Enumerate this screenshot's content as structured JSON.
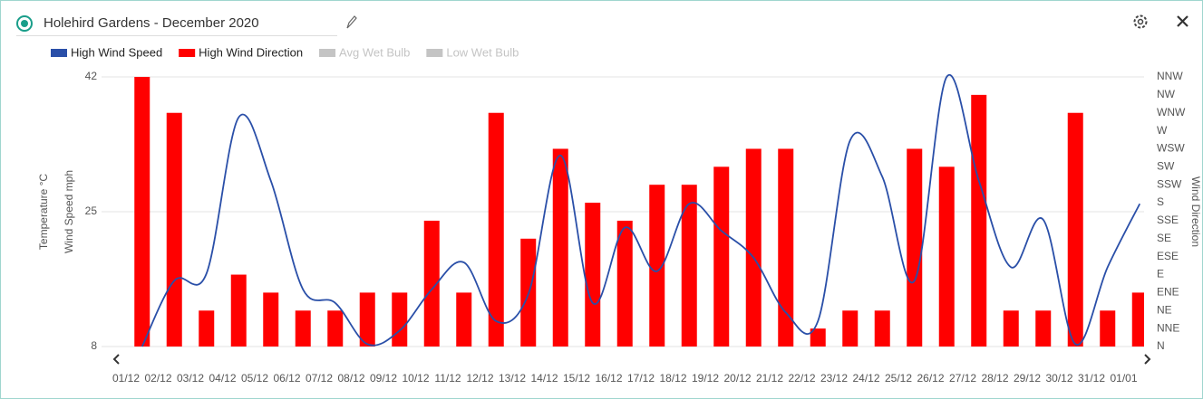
{
  "header": {
    "title": "Holehird Gardens - December 2020"
  },
  "chart_data": {
    "type": "combo",
    "categories": [
      "01/12",
      "02/12",
      "03/12",
      "04/12",
      "05/12",
      "06/12",
      "07/12",
      "08/12",
      "09/12",
      "10/12",
      "11/12",
      "12/12",
      "13/12",
      "14/12",
      "15/12",
      "16/12",
      "17/12",
      "18/12",
      "19/12",
      "20/12",
      "21/12",
      "22/12",
      "23/12",
      "24/12",
      "25/12",
      "26/12",
      "27/12",
      "28/12",
      "29/12",
      "30/12",
      "31/12",
      "01/01"
    ],
    "y_label": "Wind Speed mph",
    "y_label_secondary": "Temperature °C",
    "y2_label": "Wind Direction",
    "ylim": [
      8,
      42
    ],
    "yticks": [
      8,
      25,
      42
    ],
    "y2lim": [
      0,
      15
    ],
    "y2ticks": [
      {
        "value": 0,
        "label": "N"
      },
      {
        "value": 1,
        "label": "NNE"
      },
      {
        "value": 2,
        "label": "NE"
      },
      {
        "value": 3,
        "label": "ENE"
      },
      {
        "value": 4,
        "label": "E"
      },
      {
        "value": 5,
        "label": "ESE"
      },
      {
        "value": 6,
        "label": "SE"
      },
      {
        "value": 7,
        "label": "SSE"
      },
      {
        "value": 8,
        "label": "S"
      },
      {
        "value": 9,
        "label": "SSW"
      },
      {
        "value": 10,
        "label": "SW"
      },
      {
        "value": 11,
        "label": "WSW"
      },
      {
        "value": 12,
        "label": "W"
      },
      {
        "value": 13,
        "label": "WNW"
      },
      {
        "value": 14,
        "label": "NW"
      },
      {
        "value": 15,
        "label": "NNW"
      }
    ],
    "grid": true,
    "series": [
      {
        "name": "High Wind Speed",
        "type": "line",
        "color": "#2a4fa8",
        "values": [
          8,
          16.3,
          17.2,
          36.9,
          28.9,
          15.2,
          13.5,
          8.3,
          10,
          15.2,
          18.6,
          11.2,
          14.6,
          32.1,
          13.5,
          23,
          17.5,
          26,
          22.6,
          19.2,
          12.3,
          11.2,
          34,
          29.4,
          16.3,
          42,
          28.9,
          18,
          24,
          8.3,
          18,
          26
        ]
      },
      {
        "name": "High Wind Direction",
        "type": "bar",
        "axis": "y2",
        "color": "#ff0000",
        "values": [
          15,
          13,
          2,
          4,
          3,
          2,
          2,
          3,
          3,
          7,
          3,
          13,
          6,
          11,
          8,
          7,
          9,
          9,
          10,
          11,
          11,
          1,
          2,
          2,
          11,
          10,
          14,
          2,
          2,
          13,
          2,
          3
        ]
      }
    ],
    "inactive_legend": [
      "Avg Wet Bulb",
      "Low Wet Bulb"
    ]
  }
}
